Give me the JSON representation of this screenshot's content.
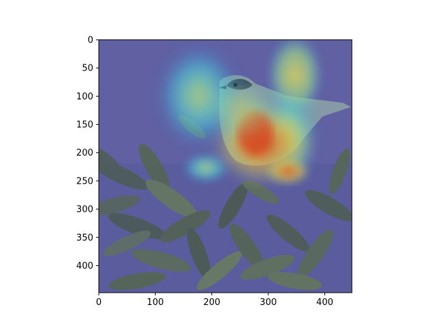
{
  "figure": {
    "description_free": true,
    "image": {
      "kind": "photo",
      "subject_icon": "bird-on-branch-heatmap-overlay",
      "colors": {
        "overlay_base": "#5a5c9c",
        "leaf_dark": "#3b4a4a",
        "leaf_light": "#6b7f63",
        "bird_body": "#7f97a0",
        "heat_low": "#3fd0e6",
        "heat_mid": "#cfe36a",
        "heat_high": "#e0541c"
      }
    },
    "axes": {
      "x": {
        "ticks": [
          0,
          100,
          200,
          300,
          400
        ],
        "range": [
          0,
          448
        ]
      },
      "y": {
        "ticks": [
          0,
          50,
          100,
          150,
          200,
          250,
          300,
          350,
          400
        ],
        "range": [
          0,
          448
        ],
        "inverted": true
      }
    },
    "x_tick_labels": [
      "0",
      "100",
      "200",
      "300",
      "400"
    ],
    "y_tick_labels": [
      "0",
      "50",
      "100",
      "150",
      "200",
      "250",
      "300",
      "350",
      "400"
    ]
  }
}
